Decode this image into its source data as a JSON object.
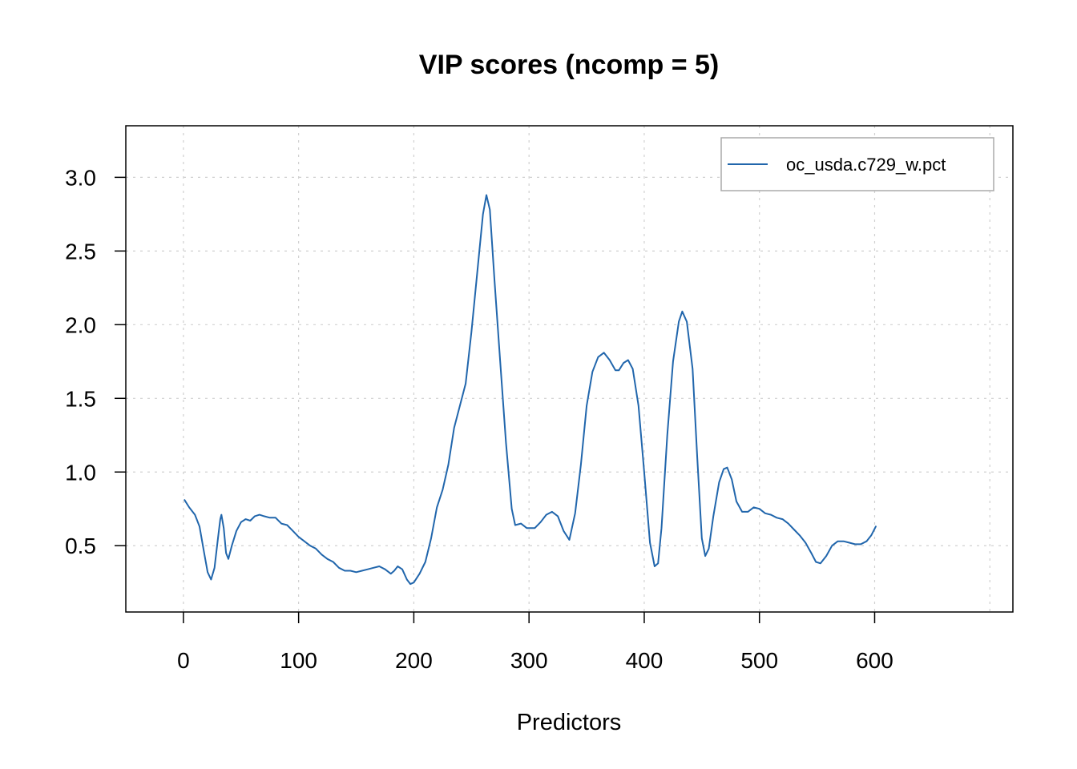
{
  "chart_data": {
    "type": "line",
    "title": "VIP scores (ncomp = 5)",
    "xlabel": "Predictors",
    "ylabel": "",
    "xlim": [
      -50,
      720
    ],
    "ylim": [
      0.05,
      3.35
    ],
    "xticks": [
      0,
      100,
      200,
      300,
      400,
      500,
      600
    ],
    "yticks": [
      0.5,
      1.0,
      1.5,
      2.0,
      2.5,
      3.0
    ],
    "xtick_labels": [
      "0",
      "100",
      "200",
      "300",
      "400",
      "500",
      "600"
    ],
    "ytick_labels": [
      "0.5",
      "1.0",
      "1.5",
      "2.0",
      "2.5",
      "3.0"
    ],
    "grid": true,
    "legend_position": "top-right",
    "series": [
      {
        "name": "oc_usda.c729_w.pct",
        "color": "#2166AC",
        "points": [
          [
            1,
            0.81
          ],
          [
            5,
            0.76
          ],
          [
            10,
            0.71
          ],
          [
            14,
            0.63
          ],
          [
            18,
            0.45
          ],
          [
            21,
            0.32
          ],
          [
            24,
            0.27
          ],
          [
            27,
            0.35
          ],
          [
            30,
            0.55
          ],
          [
            32,
            0.68
          ],
          [
            33,
            0.71
          ],
          [
            35,
            0.62
          ],
          [
            37,
            0.45
          ],
          [
            39,
            0.41
          ],
          [
            42,
            0.5
          ],
          [
            46,
            0.6
          ],
          [
            50,
            0.66
          ],
          [
            54,
            0.68
          ],
          [
            58,
            0.67
          ],
          [
            62,
            0.7
          ],
          [
            66,
            0.71
          ],
          [
            70,
            0.7
          ],
          [
            75,
            0.69
          ],
          [
            80,
            0.69
          ],
          [
            85,
            0.65
          ],
          [
            90,
            0.64
          ],
          [
            95,
            0.6
          ],
          [
            100,
            0.56
          ],
          [
            105,
            0.53
          ],
          [
            110,
            0.5
          ],
          [
            115,
            0.48
          ],
          [
            120,
            0.44
          ],
          [
            125,
            0.41
          ],
          [
            130,
            0.39
          ],
          [
            135,
            0.35
          ],
          [
            140,
            0.33
          ],
          [
            145,
            0.33
          ],
          [
            150,
            0.32
          ],
          [
            155,
            0.33
          ],
          [
            160,
            0.34
          ],
          [
            165,
            0.35
          ],
          [
            170,
            0.36
          ],
          [
            175,
            0.34
          ],
          [
            180,
            0.31
          ],
          [
            183,
            0.33
          ],
          [
            186,
            0.36
          ],
          [
            190,
            0.34
          ],
          [
            194,
            0.27
          ],
          [
            197,
            0.24
          ],
          [
            200,
            0.25
          ],
          [
            205,
            0.31
          ],
          [
            210,
            0.39
          ],
          [
            215,
            0.55
          ],
          [
            220,
            0.76
          ],
          [
            225,
            0.88
          ],
          [
            230,
            1.05
          ],
          [
            235,
            1.3
          ],
          [
            240,
            1.45
          ],
          [
            245,
            1.6
          ],
          [
            250,
            1.95
          ],
          [
            255,
            2.35
          ],
          [
            260,
            2.75
          ],
          [
            263,
            2.88
          ],
          [
            266,
            2.78
          ],
          [
            270,
            2.3
          ],
          [
            275,
            1.75
          ],
          [
            280,
            1.2
          ],
          [
            285,
            0.75
          ],
          [
            288,
            0.64
          ],
          [
            293,
            0.65
          ],
          [
            298,
            0.62
          ],
          [
            305,
            0.62
          ],
          [
            310,
            0.66
          ],
          [
            315,
            0.71
          ],
          [
            320,
            0.73
          ],
          [
            325,
            0.7
          ],
          [
            330,
            0.6
          ],
          [
            335,
            0.54
          ],
          [
            340,
            0.72
          ],
          [
            345,
            1.05
          ],
          [
            350,
            1.45
          ],
          [
            355,
            1.68
          ],
          [
            360,
            1.78
          ],
          [
            365,
            1.81
          ],
          [
            370,
            1.76
          ],
          [
            375,
            1.69
          ],
          [
            378,
            1.69
          ],
          [
            382,
            1.74
          ],
          [
            386,
            1.76
          ],
          [
            390,
            1.7
          ],
          [
            395,
            1.45
          ],
          [
            400,
            1.0
          ],
          [
            405,
            0.52
          ],
          [
            409,
            0.36
          ],
          [
            412,
            0.38
          ],
          [
            415,
            0.62
          ],
          [
            420,
            1.25
          ],
          [
            425,
            1.75
          ],
          [
            430,
            2.02
          ],
          [
            433,
            2.09
          ],
          [
            437,
            2.02
          ],
          [
            442,
            1.7
          ],
          [
            446,
            1.1
          ],
          [
            450,
            0.55
          ],
          [
            453,
            0.43
          ],
          [
            456,
            0.48
          ],
          [
            460,
            0.7
          ],
          [
            465,
            0.93
          ],
          [
            469,
            1.02
          ],
          [
            472,
            1.03
          ],
          [
            476,
            0.95
          ],
          [
            480,
            0.8
          ],
          [
            485,
            0.73
          ],
          [
            490,
            0.73
          ],
          [
            495,
            0.76
          ],
          [
            500,
            0.75
          ],
          [
            505,
            0.72
          ],
          [
            510,
            0.71
          ],
          [
            515,
            0.69
          ],
          [
            520,
            0.68
          ],
          [
            525,
            0.65
          ],
          [
            530,
            0.61
          ],
          [
            535,
            0.57
          ],
          [
            540,
            0.52
          ],
          [
            545,
            0.45
          ],
          [
            549,
            0.39
          ],
          [
            553,
            0.38
          ],
          [
            558,
            0.43
          ],
          [
            563,
            0.5
          ],
          [
            568,
            0.53
          ],
          [
            573,
            0.53
          ],
          [
            578,
            0.52
          ],
          [
            583,
            0.51
          ],
          [
            588,
            0.51
          ],
          [
            593,
            0.53
          ],
          [
            597,
            0.57
          ],
          [
            601,
            0.63
          ]
        ]
      }
    ]
  }
}
